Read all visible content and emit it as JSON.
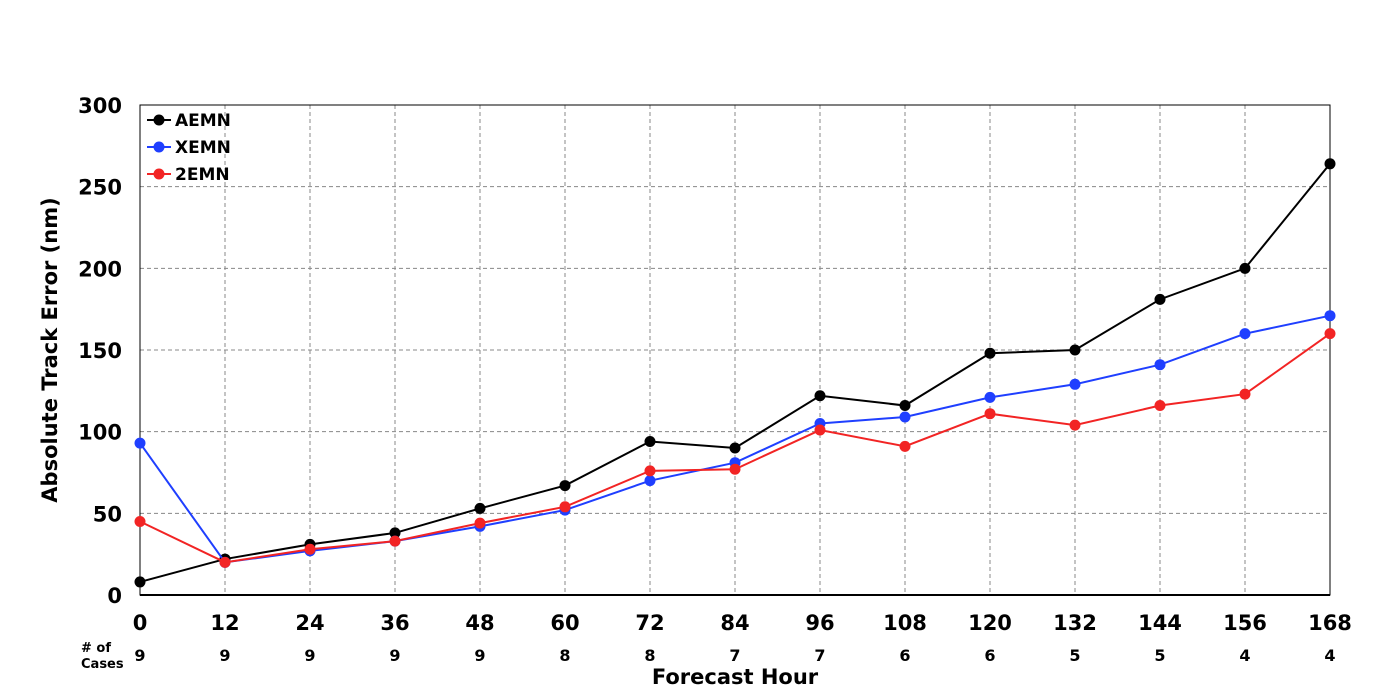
{
  "chart_data": {
    "type": "line",
    "xlabel": "Forecast Hour",
    "ylabel": "Absolute Track Error (nm)",
    "x": [
      0,
      12,
      24,
      36,
      48,
      60,
      72,
      84,
      96,
      108,
      120,
      132,
      144,
      156,
      168
    ],
    "xlim": [
      0,
      168
    ],
    "ylim": [
      0,
      300
    ],
    "yticks": [
      0,
      50,
      100,
      150,
      200,
      250,
      300
    ],
    "grid": true,
    "legend_position": "top-left",
    "series": [
      {
        "name": "AEMN",
        "color": "#000000",
        "values": [
          8,
          22,
          31,
          38,
          53,
          67,
          94,
          90,
          122,
          116,
          148,
          150,
          181,
          200,
          264
        ]
      },
      {
        "name": "XEMN",
        "color": "#1f3fff",
        "values": [
          93,
          20,
          27,
          33,
          42,
          52,
          70,
          81,
          105,
          109,
          121,
          129,
          141,
          160,
          171
        ]
      },
      {
        "name": "2EMN",
        "color": "#f22424",
        "values": [
          45,
          20,
          28,
          33,
          44,
          54,
          76,
          77,
          101,
          91,
          111,
          104,
          116,
          123,
          160
        ]
      }
    ],
    "cases_label": [
      "# of",
      "Cases"
    ],
    "cases": [
      9,
      9,
      9,
      9,
      9,
      8,
      8,
      7,
      7,
      6,
      6,
      5,
      5,
      4,
      4
    ]
  }
}
